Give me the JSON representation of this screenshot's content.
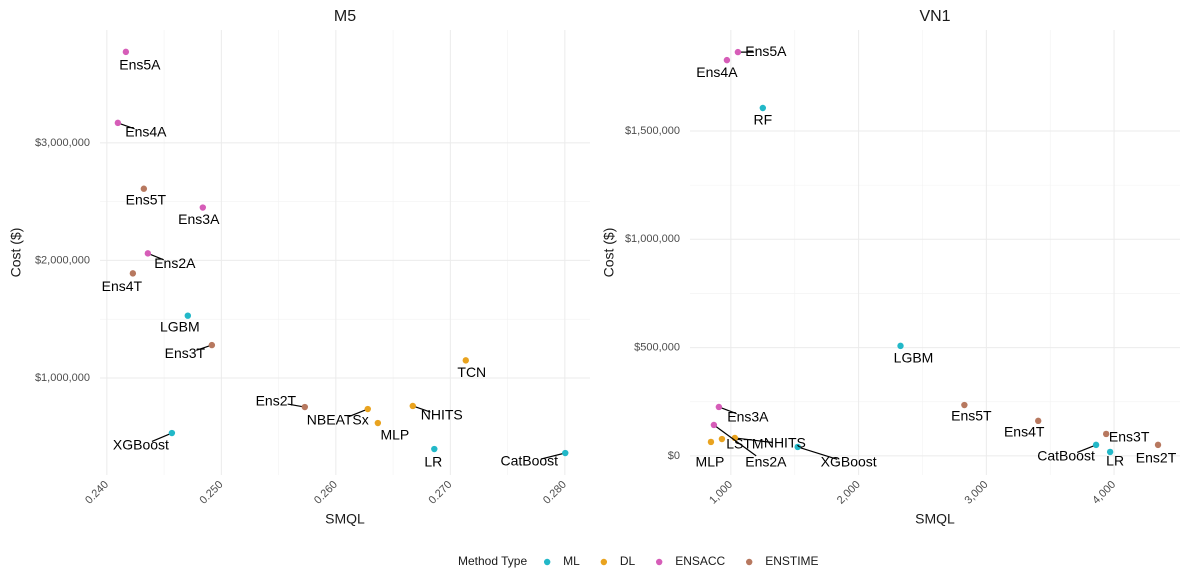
{
  "chart_data": [
    {
      "type": "scatter",
      "title": "M5",
      "x_label": "SMQL",
      "y_label": "Cost ($)",
      "xlim": [
        0.2394,
        0.2822
      ],
      "ylim": [
        175000,
        3960000
      ],
      "xticks": [
        {
          "value": 0.24,
          "label": "0.240"
        },
        {
          "value": 0.25,
          "label": "0.250"
        },
        {
          "value": 0.26,
          "label": "0.260"
        },
        {
          "value": 0.27,
          "label": "0.270"
        },
        {
          "value": 0.28,
          "label": "0.280"
        }
      ],
      "yticks": [
        {
          "value": 1000000,
          "label": "$1,000,000"
        },
        {
          "value": 2000000,
          "label": "$2,000,000"
        },
        {
          "value": 3000000,
          "label": "$3,000,000"
        }
      ],
      "grid": true,
      "series": [
        {
          "name": "ML",
          "color": "#22b8c8",
          "labels": [
            "LGBM",
            "XGBoost",
            "LR",
            "CatBoost"
          ],
          "x": [
            0.24707,
            0.24568,
            0.2686,
            0.28004
          ],
          "values": [
            1530000,
            532000,
            396000,
            362000
          ]
        },
        {
          "name": "DL",
          "color": "#e9a31f",
          "labels": [
            "TCN",
            "NBEATSx",
            "NHITS",
            "MLP"
          ],
          "x": [
            0.27135,
            0.26279,
            0.26672,
            0.26367
          ],
          "values": [
            1150000,
            736000,
            762000,
            617000
          ]
        },
        {
          "name": "ENSACC",
          "color": "#d65db8",
          "labels": [
            "Ens5A",
            "Ens4A",
            "Ens3A",
            "Ens2A"
          ],
          "x": [
            0.24166,
            0.24096,
            0.24838,
            0.24358
          ],
          "values": [
            3774000,
            3170000,
            2450000,
            2060000
          ]
        },
        {
          "name": "ENSTIME",
          "color": "#b7785f",
          "labels": [
            "Ens5T",
            "Ens4T",
            "Ens3T",
            "Ens2T"
          ],
          "x": [
            0.24323,
            0.24227,
            0.24917,
            0.25729
          ],
          "values": [
            2610000,
            1890000,
            1280000,
            753000
          ]
        }
      ]
    },
    {
      "type": "scatter",
      "title": "VN1",
      "x_label": "SMQL",
      "y_label": "Cost ($)",
      "xlim": [
        680,
        4516
      ],
      "ylim": [
        -88000,
        1966000
      ],
      "xticks": [
        {
          "value": 1000,
          "label": "1,000"
        },
        {
          "value": 2000,
          "label": "2,000"
        },
        {
          "value": 3000,
          "label": "3,000"
        },
        {
          "value": 4000,
          "label": "4,000"
        }
      ],
      "yticks": [
        {
          "value": 0,
          "label": "$0"
        },
        {
          "value": 500000,
          "label": "$500,000"
        },
        {
          "value": 1000000,
          "label": "$1,000,000"
        },
        {
          "value": 1500000,
          "label": "$1,500,000"
        }
      ],
      "grid": true,
      "series": [
        {
          "name": "ML",
          "color": "#22b8c8",
          "labels": [
            "RF",
            "LGBM",
            "XGBoost",
            "CatBoost",
            "LR"
          ],
          "x": [
            1250,
            2328,
            1523,
            3859,
            3969
          ],
          "values": [
            1606000,
            508000,
            41500,
            51000,
            18500
          ]
        },
        {
          "name": "DL",
          "color": "#e9a31f",
          "labels": [
            "MLP",
            "LSTM",
            "NHITS"
          ],
          "x": [
            844,
            930,
            1031
          ],
          "values": [
            64600,
            78000,
            83000
          ]
        },
        {
          "name": "ENSACC",
          "color": "#d65db8",
          "labels": [
            "Ens5A",
            "Ens4A",
            "Ens3A",
            "Ens2A"
          ],
          "x": [
            1055,
            969,
            906,
            867
          ],
          "values": [
            1864000,
            1827000,
            226000,
            143000
          ]
        },
        {
          "name": "ENSTIME",
          "color": "#b7785f",
          "labels": [
            "Ens5T",
            "Ens4T",
            "Ens3T",
            "Ens2T"
          ],
          "x": [
            2828,
            3406,
            3938,
            4344
          ],
          "values": [
            235000,
            162000,
            101500,
            51000
          ]
        }
      ]
    }
  ],
  "legend": {
    "title": "Method Type"
  }
}
